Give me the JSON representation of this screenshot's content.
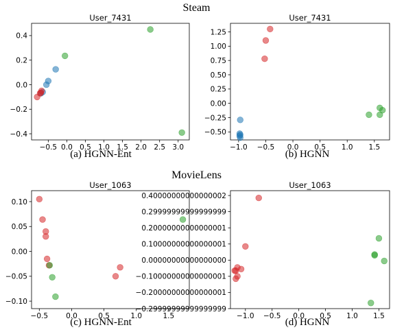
{
  "sections": [
    {
      "title": "Steam"
    },
    {
      "title": "MovieLens"
    }
  ],
  "colors": {
    "blue": "#1f77b4",
    "red": "#d62728",
    "green": "#2ca02c"
  },
  "chart_data": [
    {
      "type": "scatter",
      "title": "User_7431",
      "caption": "(a)  HGNN-Ent",
      "xlim": [
        -0.95,
        3.3
      ],
      "ylim": [
        -0.45,
        0.5
      ],
      "xticks": [
        -0.5,
        0.0,
        0.5,
        1.0,
        1.5,
        2.0,
        2.5,
        3.0
      ],
      "yticks": [
        -0.4,
        -0.2,
        0.0,
        0.2,
        0.4
      ],
      "series": [
        {
          "color": "blue",
          "points": [
            [
              -0.5,
              0.03
            ],
            [
              -0.3,
              0.125
            ],
            [
              -0.55,
              0.0
            ],
            [
              -0.65,
              -0.06
            ],
            [
              -0.7,
              -0.07
            ]
          ]
        },
        {
          "color": "red",
          "points": [
            [
              -0.8,
              -0.1
            ],
            [
              -0.7,
              -0.065
            ],
            [
              -0.68,
              -0.05
            ],
            [
              -0.72,
              -0.07
            ]
          ]
        },
        {
          "color": "green",
          "points": [
            [
              -0.05,
              0.235
            ],
            [
              2.25,
              0.45
            ],
            [
              3.1,
              -0.39
            ]
          ]
        }
      ]
    },
    {
      "type": "scatter",
      "title": "User_7431",
      "caption": "(b)  HGNN",
      "xlim": [
        -1.15,
        1.78
      ],
      "ylim": [
        -0.64,
        1.4
      ],
      "xticks": [
        -1.0,
        -0.5,
        0.0,
        0.5,
        1.0,
        1.5
      ],
      "yticks": [
        -0.5,
        -0.25,
        0.0,
        0.25,
        0.5,
        0.75,
        1.0,
        1.25
      ],
      "series": [
        {
          "color": "blue",
          "points": [
            [
              -0.97,
              -0.29
            ],
            [
              -0.98,
              -0.53
            ],
            [
              -0.97,
              -0.55
            ],
            [
              -0.98,
              -0.57
            ],
            [
              -0.97,
              -0.6
            ]
          ]
        },
        {
          "color": "red",
          "points": [
            [
              -0.42,
              1.3
            ],
            [
              -0.5,
              1.1
            ],
            [
              -0.52,
              0.78
            ]
          ]
        },
        {
          "color": "green",
          "points": [
            [
              1.4,
              -0.2
            ],
            [
              1.6,
              -0.08
            ],
            [
              1.65,
              -0.12
            ],
            [
              1.6,
              -0.2
            ]
          ]
        }
      ]
    },
    {
      "type": "scatter",
      "title": "User_1063",
      "caption": "(c)  HGNN-Ent",
      "xlim": [
        -0.62,
        1.82
      ],
      "ylim": [
        -0.115,
        0.122
      ],
      "xticks": [
        -0.5,
        0.0,
        0.5,
        1.0,
        1.5
      ],
      "yticks": [
        -0.1,
        -0.05,
        0.0,
        0.05,
        0.1
      ],
      "series": [
        {
          "color": "red",
          "points": [
            [
              -0.5,
              0.105
            ],
            [
              -0.45,
              0.064
            ],
            [
              -0.4,
              0.04
            ],
            [
              -0.4,
              0.03
            ],
            [
              -0.38,
              -0.015
            ],
            [
              -0.35,
              -0.028
            ],
            [
              0.68,
              -0.05
            ],
            [
              0.75,
              -0.032
            ]
          ]
        },
        {
          "color": "green",
          "points": [
            [
              -0.34,
              -0.028
            ],
            [
              -0.3,
              -0.052
            ],
            [
              -0.25,
              -0.091
            ],
            [
              1.72,
              0.064
            ]
          ]
        }
      ]
    },
    {
      "type": "scatter",
      "title": "User_1063",
      "caption": "(d)  HGNN",
      "xlim": [
        -1.28,
        1.7
      ],
      "ylim": [
        -0.3,
        0.43
      ],
      "xticks": [
        -1.0,
        -0.5,
        0.0,
        0.5,
        1.0,
        1.5
      ],
      "yticks": [
        -0.3,
        -0.2,
        -0.1,
        0.0,
        0.1,
        0.2,
        0.3,
        0.4
      ],
      "series": [
        {
          "color": "red",
          "points": [
            [
              -0.75,
              0.385
            ],
            [
              -1.0,
              0.085
            ],
            [
              -1.2,
              -0.065
            ],
            [
              -1.15,
              -0.045
            ],
            [
              -1.08,
              -0.055
            ],
            [
              -1.15,
              -0.1
            ],
            [
              -1.18,
              -0.115
            ],
            [
              -1.18,
              -0.065
            ]
          ]
        },
        {
          "color": "green",
          "points": [
            [
              1.5,
              0.135
            ],
            [
              1.42,
              0.035
            ],
            [
              1.42,
              0.03
            ],
            [
              1.6,
              -0.005
            ],
            [
              1.35,
              -0.265
            ]
          ]
        }
      ]
    }
  ]
}
